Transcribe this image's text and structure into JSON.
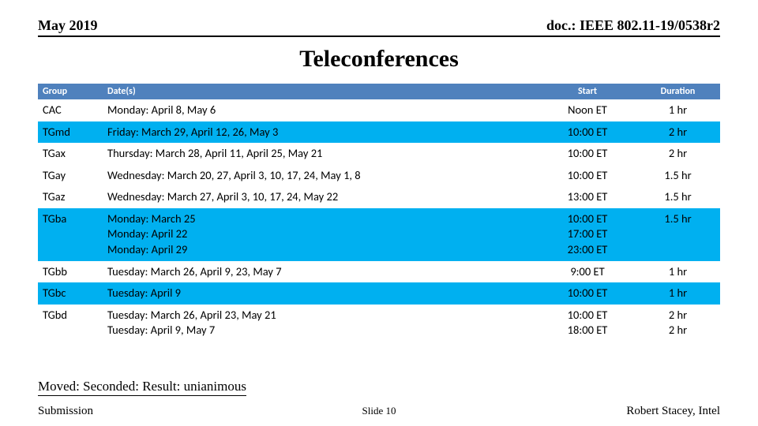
{
  "header": {
    "left": "May 2019",
    "right": "doc.: IEEE 802.11-19/0538r2"
  },
  "title": "Teleconferences",
  "table": {
    "columns": {
      "group": "Group",
      "dates": "Date(s)",
      "start": "Start",
      "duration": "Duration"
    },
    "header_bg": "#4f81bd",
    "highlight_bg": "#00b0f0",
    "rows": [
      {
        "band": "a",
        "group": "CAC",
        "dates": "Monday: April 8, May 6",
        "start": "Noon ET",
        "duration": "1 hr"
      },
      {
        "band": "b",
        "group": "TGmd",
        "dates": "Friday: March 29, April  12, 26, May 3",
        "start": "10:00 ET",
        "duration": "2 hr"
      },
      {
        "band": "a",
        "group": "TGax",
        "dates": "Thursday: March 28, April 11, April 25, May 21",
        "start": "10:00 ET",
        "duration": "2 hr"
      },
      {
        "band": "a",
        "group": "TGay",
        "dates": "Wednesday: March 20, 27, April  3, 10, 17, 24, May 1, 8",
        "start": "10:00 ET",
        "duration": "1.5 hr"
      },
      {
        "band": "a",
        "group": "TGaz",
        "dates": "Wednesday: March 27, April 3, 10, 17, 24, May 22",
        "start": "13:00 ET",
        "duration": "1.5 hr"
      },
      {
        "band": "b",
        "group": "TGba",
        "dates_lines": [
          "Monday: March 25",
          "Monday: April 22",
          "Monday: April 29"
        ],
        "start_lines": [
          "10:00 ET",
          "17:00 ET",
          "23:00 ET"
        ],
        "duration": "1.5 hr"
      },
      {
        "band": "a",
        "group": "TGbb",
        "dates": "Tuesday: March 26, April 9, 23, May 7",
        "start": "9:00 ET",
        "duration": "1 hr"
      },
      {
        "band": "b",
        "group": "TGbc",
        "dates": "Tuesday: April 9",
        "start": "10:00 ET",
        "duration": "1 hr"
      },
      {
        "band": "a",
        "group": "TGbd",
        "dates_lines": [
          "Tuesday: March 26, April 23, May 21",
          "Tuesday: April 9, May 7"
        ],
        "start_lines": [
          "10:00 ET",
          "18:00 ET"
        ],
        "duration_lines": [
          "2 hr",
          "2 hr"
        ]
      }
    ]
  },
  "motion": "Moved: Seconded: Result: unianimous",
  "footer": {
    "left": "Submission",
    "center": "Slide 10",
    "right": "Robert Stacey, Intel"
  }
}
